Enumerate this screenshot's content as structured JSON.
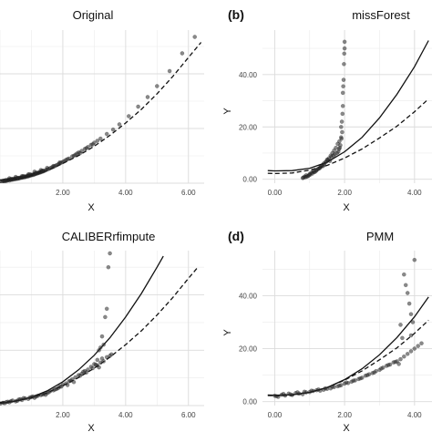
{
  "chart_data": [
    {
      "panel_label": "",
      "title": "Original",
      "type": "scatter",
      "xlabel": "X",
      "ylabel": "",
      "xticks": [
        "2.00",
        "4.00",
        "6.00"
      ],
      "yticks": [],
      "xlim": [
        0,
        6.5
      ],
      "ylim": [
        0,
        56
      ],
      "grid": true,
      "legend": "none",
      "points": {
        "x": [
          0.0,
          0.05,
          0.1,
          0.12,
          0.15,
          0.18,
          0.2,
          0.22,
          0.25,
          0.28,
          0.3,
          0.32,
          0.35,
          0.38,
          0.4,
          0.42,
          0.45,
          0.48,
          0.5,
          0.52,
          0.55,
          0.58,
          0.6,
          0.62,
          0.65,
          0.68,
          0.7,
          0.72,
          0.75,
          0.78,
          0.8,
          0.82,
          0.85,
          0.88,
          0.9,
          0.92,
          0.95,
          0.98,
          1.0,
          1.02,
          1.05,
          1.08,
          1.1,
          1.12,
          1.15,
          1.18,
          1.2,
          1.22,
          1.25,
          1.28,
          1.3,
          1.32,
          1.35,
          1.38,
          1.4,
          1.45,
          1.5,
          1.55,
          1.6,
          1.65,
          1.7,
          1.75,
          1.8,
          1.85,
          1.9,
          1.95,
          2.0,
          2.1,
          2.2,
          2.3,
          2.4,
          2.5,
          2.6,
          2.7,
          2.8,
          2.9,
          3.0,
          3.1,
          3.2,
          3.4,
          3.6,
          3.8,
          4.1,
          4.4,
          4.7,
          5.0,
          5.4,
          5.8,
          6.2,
          0.3,
          0.5,
          0.7,
          0.9,
          1.1,
          1.3,
          1.5,
          1.7,
          1.9,
          2.05,
          2.15,
          2.35,
          2.45,
          2.55,
          2.75,
          2.95,
          0.15,
          0.35,
          0.55,
          0.75,
          0.95,
          1.15,
          1.35
        ],
        "y": [
          0.6,
          0.4,
          0.9,
          0.7,
          1.0,
          0.8,
          1.2,
          0.9,
          1.1,
          1.3,
          1.0,
          1.4,
          1.2,
          1.5,
          1.3,
          1.6,
          1.4,
          1.7,
          1.5,
          1.8,
          1.6,
          1.9,
          1.7,
          2.0,
          1.9,
          2.1,
          2.0,
          2.3,
          2.1,
          2.4,
          2.2,
          2.5,
          2.4,
          2.7,
          2.5,
          2.8,
          2.7,
          3.0,
          2.9,
          3.1,
          3.0,
          3.3,
          3.2,
          3.5,
          3.4,
          3.7,
          3.6,
          3.9,
          3.8,
          4.1,
          4.0,
          4.3,
          4.2,
          4.5,
          4.4,
          4.7,
          5.0,
          5.2,
          5.5,
          5.8,
          6.0,
          6.3,
          6.6,
          6.9,
          7.2,
          7.5,
          7.8,
          8.5,
          9.0,
          9.8,
          10.4,
          11.2,
          11.8,
          12.5,
          13.2,
          14.0,
          14.8,
          15.5,
          16.3,
          18.0,
          19.6,
          21.5,
          24.5,
          28.0,
          31.5,
          35.5,
          41.0,
          47.5,
          53.5,
          1.8,
          2.3,
          2.6,
          3.2,
          4.2,
          4.8,
          5.6,
          6.3,
          7.6,
          8.1,
          8.8,
          10.0,
          10.8,
          11.0,
          12.8,
          14.2,
          0.9,
          1.5,
          1.9,
          2.6,
          3.3,
          3.8,
          4.6
        ]
      },
      "curves": [
        {
          "style": "dashed",
          "x": [
            0,
            0.5,
            1,
            1.5,
            2,
            2.5,
            3,
            3.5,
            4,
            4.5,
            5,
            5.5,
            6,
            6.4
          ],
          "y": [
            1.2,
            1.7,
            2.8,
            4.6,
            7.2,
            10.1,
            13.5,
            17.5,
            22,
            27,
            32.7,
            39,
            46,
            51.5
          ]
        }
      ]
    },
    {
      "panel_label": "(b)",
      "title": "missForest",
      "type": "scatter",
      "xlabel": "X",
      "ylabel": "Y",
      "xticks": [
        "0.00",
        "2.00",
        "4.00"
      ],
      "yticks": [
        "0.00",
        "20.00",
        "40.00"
      ],
      "xlim": [
        -0.35,
        4.5
      ],
      "ylim": [
        -1.5,
        57
      ],
      "grid": true,
      "legend": "none",
      "points": {
        "x": [
          0.8,
          0.85,
          0.9,
          0.95,
          1.0,
          1.05,
          1.1,
          1.15,
          1.2,
          1.25,
          1.3,
          1.35,
          1.4,
          1.45,
          1.5,
          1.55,
          1.6,
          1.65,
          1.7,
          1.75,
          1.8,
          1.85,
          1.9,
          1.9,
          1.92,
          1.95,
          1.95,
          1.97,
          1.98,
          1.99,
          2.0,
          2.0,
          1.96,
          1.94,
          1.93,
          1.91,
          1.88,
          1.86,
          1.84,
          1.82,
          1.78,
          1.72,
          1.68,
          1.62,
          1.58,
          1.52,
          1.48,
          1.42,
          1.38,
          1.32,
          1.28,
          1.22,
          1.18,
          1.12,
          1.08,
          1.02,
          0.98,
          0.92,
          0.88,
          0.82
        ],
        "y": [
          0.5,
          1.0,
          1.5,
          1.2,
          2.0,
          2.5,
          3.0,
          2.8,
          3.5,
          4.0,
          4.5,
          5.2,
          6.0,
          6.5,
          7.5,
          8.0,
          9.0,
          10.0,
          11.0,
          12.0,
          13.5,
          14.5,
          16.0,
          20.0,
          22.0,
          28.0,
          33.0,
          38.0,
          44.0,
          48.0,
          52.5,
          50.0,
          35.5,
          25.0,
          18.0,
          15.5,
          13.0,
          12.0,
          11.5,
          10.5,
          10.0,
          9.5,
          9.0,
          8.5,
          7.0,
          7.5,
          6.8,
          5.5,
          5.0,
          4.8,
          4.2,
          3.8,
          3.2,
          2.8,
          2.2,
          1.8,
          1.5,
          1.0,
          0.8,
          0.6
        ]
      },
      "curves": [
        {
          "style": "solid",
          "x": [
            -0.2,
            0,
            0.5,
            1,
            1.5,
            2,
            2.5,
            3,
            3.5,
            4,
            4.4
          ],
          "y": [
            3.3,
            3.2,
            3.3,
            4.2,
            6.5,
            10.5,
            16,
            23.5,
            32.5,
            43,
            53
          ]
        },
        {
          "style": "dashed",
          "x": [
            -0.2,
            0,
            0.5,
            1,
            1.5,
            2,
            2.5,
            3,
            3.5,
            4,
            4.4
          ],
          "y": [
            2.3,
            2.2,
            2.4,
            3.5,
            5.3,
            8.1,
            11.6,
            15.8,
            20.3,
            25.8,
            30.7
          ]
        }
      ]
    },
    {
      "panel_label": "",
      "title": "CALIBERrfimpute",
      "type": "scatter",
      "xlabel": "X",
      "ylabel": "",
      "xticks": [
        "2.00",
        "4.00",
        "6.00"
      ],
      "yticks": [],
      "xlim": [
        0,
        6.5
      ],
      "ylim": [
        0,
        56
      ],
      "grid": true,
      "legend": "none",
      "points": {
        "x": [
          0.0,
          0.1,
          0.2,
          0.3,
          0.4,
          0.5,
          0.6,
          0.7,
          0.8,
          0.9,
          1.0,
          1.1,
          1.2,
          1.3,
          1.4,
          1.5,
          1.6,
          1.7,
          1.8,
          1.9,
          2.0,
          2.1,
          2.2,
          2.3,
          2.4,
          2.5,
          2.6,
          2.7,
          2.8,
          2.9,
          3.0,
          3.1,
          3.2,
          3.3,
          3.4,
          3.5,
          3.55,
          3.5,
          3.45,
          3.4,
          3.35,
          3.3,
          3.25,
          3.2,
          3.15,
          3.1,
          0.15,
          0.35,
          0.55,
          0.75,
          0.95,
          1.15,
          1.35,
          1.55,
          1.75,
          1.95,
          2.15,
          2.35,
          2.55,
          2.75,
          2.95,
          3.05,
          3.15,
          3.25,
          0.25,
          0.65,
          1.05,
          1.45,
          1.85,
          2.25,
          2.65
        ],
        "y": [
          0.6,
          1.0,
          1.3,
          1.2,
          1.8,
          1.5,
          2.2,
          2.0,
          2.6,
          2.4,
          3.1,
          2.8,
          3.5,
          3.8,
          4.2,
          4.5,
          5.2,
          5.5,
          6.0,
          6.8,
          7.5,
          8.0,
          8.8,
          9.5,
          10.2,
          11.0,
          11.5,
          12.5,
          13.0,
          14.0,
          15.0,
          14.5,
          15.5,
          16.0,
          17.5,
          18.0,
          18.5,
          55.0,
          50.0,
          35.0,
          32.0,
          22.0,
          25.0,
          21.0,
          20.0,
          16.5,
          0.9,
          1.6,
          1.7,
          2.7,
          2.9,
          3.3,
          4.0,
          4.8,
          5.8,
          6.9,
          7.4,
          8.5,
          10.8,
          12.0,
          13.5,
          14.8,
          13.8,
          17.0,
          1.4,
          2.3,
          3.3,
          3.9,
          6.3,
          9.0,
          12.2
        ]
      },
      "curves": [
        {
          "style": "solid",
          "x": [
            0,
            0.5,
            1,
            1.5,
            2,
            2.5,
            3,
            3.5,
            4,
            4.5,
            5,
            5.2
          ],
          "y": [
            0.8,
            1.6,
            3.0,
            5.3,
            8.6,
            12.9,
            18.2,
            24.5,
            32.0,
            40.5,
            50.0,
            54.0
          ]
        },
        {
          "style": "dashed",
          "x": [
            0,
            0.5,
            1,
            1.5,
            2,
            2.5,
            3,
            3.5,
            4,
            4.5,
            5,
            5.5,
            6,
            6.3
          ],
          "y": [
            1.2,
            1.7,
            2.8,
            4.6,
            7.2,
            10.1,
            13.5,
            17.5,
            22,
            27,
            32.7,
            39,
            46,
            50
          ]
        }
      ]
    },
    {
      "panel_label": "(d)",
      "title": "PMM",
      "type": "scatter",
      "xlabel": "X",
      "ylabel": "Y",
      "xticks": [
        "0.00",
        "2.00",
        "4.00"
      ],
      "yticks": [
        "0.00",
        "20.00",
        "40.00"
      ],
      "xlim": [
        -0.35,
        4.5
      ],
      "ylim": [
        -1.5,
        57
      ],
      "grid": true,
      "legend": "none",
      "points": {
        "x": [
          0.0,
          0.1,
          0.2,
          0.3,
          0.4,
          0.5,
          0.6,
          0.7,
          0.8,
          0.9,
          1.0,
          1.1,
          1.2,
          1.3,
          1.4,
          1.5,
          1.6,
          1.7,
          1.8,
          1.9,
          2.0,
          2.1,
          2.2,
          2.3,
          2.4,
          2.5,
          2.6,
          2.7,
          2.8,
          2.9,
          3.0,
          3.1,
          3.2,
          3.3,
          3.4,
          3.5,
          3.6,
          3.7,
          3.8,
          3.9,
          4.0,
          4.1,
          4.2,
          3.7,
          3.75,
          3.8,
          3.85,
          3.9,
          3.95,
          4.0,
          3.9,
          3.6,
          3.65,
          0.05,
          0.25,
          0.45,
          0.65,
          0.85,
          1.05,
          1.25,
          1.45,
          1.65,
          1.85,
          2.05,
          2.25,
          2.45,
          2.65,
          2.85,
          3.05,
          3.25,
          3.45,
          3.55
        ],
        "y": [
          2.2,
          1.8,
          2.6,
          2.3,
          3.0,
          2.5,
          3.2,
          3.0,
          2.8,
          3.5,
          3.6,
          4.0,
          4.3,
          4.1,
          4.5,
          4.8,
          5.0,
          5.5,
          5.8,
          6.2,
          6.8,
          7.0,
          7.5,
          8.0,
          8.5,
          9.0,
          9.8,
          10.3,
          10.8,
          11.5,
          12.0,
          12.8,
          13.5,
          14.0,
          14.8,
          15.2,
          16.0,
          17.0,
          18.0,
          19.0,
          20.0,
          21.0,
          22.0,
          48.0,
          44.0,
          41.0,
          37.0,
          33.0,
          30.0,
          53.5,
          25.0,
          29.0,
          24.0,
          2.0,
          2.9,
          2.7,
          3.5,
          3.7,
          4.1,
          4.6,
          5.0,
          5.6,
          6.0,
          7.2,
          7.9,
          8.8,
          10.0,
          11.0,
          12.5,
          13.8,
          15.0,
          14.2
        ]
      },
      "curves": [
        {
          "style": "solid",
          "x": [
            -0.2,
            0,
            0.5,
            1,
            1.5,
            2,
            2.5,
            3,
            3.5,
            4,
            4.4
          ],
          "y": [
            2.5,
            2.4,
            2.6,
            3.5,
            5.3,
            8.3,
            12.4,
            17.7,
            24.2,
            32,
            39.5
          ]
        },
        {
          "style": "dashed",
          "x": [
            -0.2,
            0,
            0.5,
            1,
            1.5,
            2,
            2.5,
            3,
            3.5,
            4,
            4.4
          ],
          "y": [
            2.3,
            2.2,
            2.4,
            3.5,
            5.3,
            8.1,
            11.6,
            15.8,
            20.3,
            25.8,
            30.7
          ]
        }
      ]
    }
  ]
}
